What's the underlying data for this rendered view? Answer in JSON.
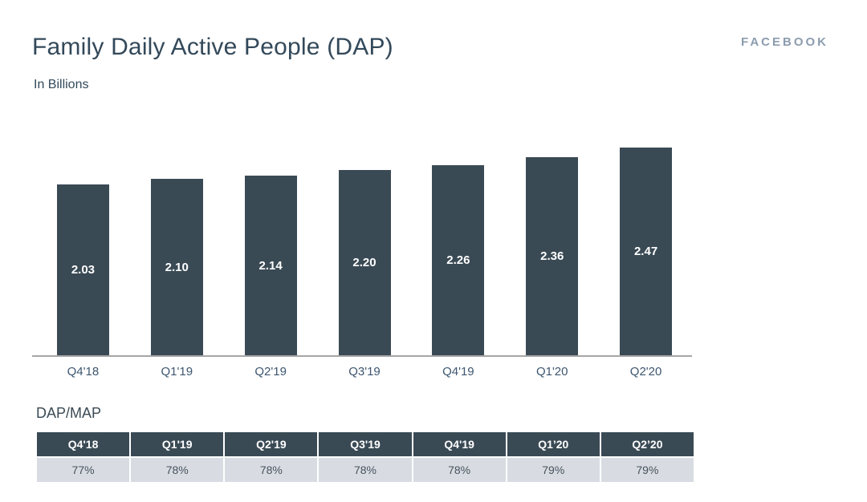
{
  "header": {
    "title": "Family Daily Active People (DAP)",
    "subtitle": "In Billions",
    "brand": "FACEBOOK"
  },
  "chart_data": [
    {
      "type": "bar",
      "title": "Family Daily Active People (DAP)",
      "units_label": "In Billions",
      "categories": [
        "Q4'18",
        "Q1'19",
        "Q2'19",
        "Q3'19",
        "Q4'19",
        "Q1'20",
        "Q2'20"
      ],
      "values": [
        2.03,
        2.1,
        2.14,
        2.2,
        2.26,
        2.36,
        2.47
      ],
      "value_labels": [
        "2.03",
        "2.10",
        "2.14",
        "2.20",
        "2.26",
        "2.36",
        "2.47"
      ],
      "ylim": [
        0,
        2.6
      ],
      "grid": false,
      "legend": false,
      "value_labels_position": "center-inside",
      "bar_color": "#3a4a55",
      "value_label_color": "#ffffff"
    },
    {
      "type": "table",
      "title": "DAP/MAP",
      "columns": [
        "Q4'18",
        "Q1'19",
        "Q2'19",
        "Q3'19",
        "Q4'19",
        "Q1’20",
        "Q2’20"
      ],
      "rows": [
        [
          "77%",
          "78%",
          "78%",
          "78%",
          "78%",
          "79%",
          "79%"
        ]
      ]
    }
  ],
  "colors": {
    "bar_fill": "#3a4a55",
    "title_text": "#33495a",
    "brand_text": "#8b9cae",
    "axis_line": "#a6a6a6",
    "tick_label": "#3d5670",
    "table_header_bg": "#3a4a55",
    "table_header_text": "#ffffff",
    "table_row_bg": "#d8dce2",
    "table_row_text": "#47525d",
    "background": "#ffffff"
  }
}
